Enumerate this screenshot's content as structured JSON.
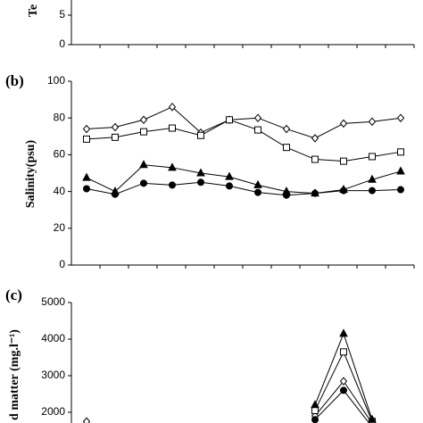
{
  "chart_data": [
    {
      "type": "line",
      "y_label": "Te",
      "ylim": [
        0,
        10
      ],
      "yticks": [
        0,
        5
      ],
      "categories": [
        null,
        null,
        null,
        null,
        null,
        null,
        null,
        null,
        null,
        null,
        null,
        null
      ],
      "series": []
    },
    {
      "type": "line",
      "panel_label": "(b)",
      "y_label": "Salinity(psu)",
      "ylim": [
        0,
        100
      ],
      "yticks": [
        0,
        20,
        40,
        60,
        80,
        100
      ],
      "categories": [
        null,
        null,
        null,
        null,
        null,
        null,
        null,
        null,
        null,
        null,
        null,
        null
      ],
      "series": [
        {
          "marker": "diamond",
          "color": "#000000",
          "values": [
            74,
            75,
            79,
            86,
            72,
            79,
            80,
            74,
            69,
            77,
            78,
            80
          ]
        },
        {
          "marker": "square",
          "color": "#000000",
          "values": [
            68.5,
            69.5,
            72.5,
            74.5,
            70.5,
            79,
            73.5,
            64,
            57.5,
            56.5,
            59,
            61.5
          ]
        },
        {
          "marker": "triangle",
          "color": "#000000",
          "values": [
            47.5,
            40,
            54.5,
            53,
            50,
            48,
            43.5,
            40,
            39,
            41,
            46.5,
            51
          ]
        },
        {
          "marker": "circle",
          "color": "#000000",
          "values": [
            41.5,
            38.5,
            44.5,
            43.5,
            45,
            43,
            39.5,
            38,
            39,
            40.5,
            40.5,
            41
          ]
        }
      ]
    },
    {
      "type": "line",
      "panel_label": "(c)",
      "y_label": "d matter (mg.l⁻¹)",
      "ylim": [
        0,
        5000
      ],
      "yticks": [
        2000,
        3000,
        4000,
        5000
      ],
      "categories": [
        null,
        null,
        null,
        null,
        null,
        null,
        null,
        null,
        null,
        null,
        null,
        null
      ],
      "series": [
        {
          "marker": "diamond",
          "color": "#000000",
          "values": [
            1750,
            null,
            null,
            null,
            null,
            null,
            null,
            null,
            1900,
            2850,
            1700,
            null
          ]
        },
        {
          "marker": "square",
          "color": "#000000",
          "values": [
            null,
            null,
            null,
            null,
            null,
            null,
            null,
            null,
            2050,
            3650,
            1750,
            null
          ]
        },
        {
          "marker": "triangle",
          "color": "#000000",
          "values": [
            null,
            null,
            null,
            null,
            null,
            null,
            null,
            null,
            2200,
            4150,
            1800,
            null
          ]
        },
        {
          "marker": "circle",
          "color": "#000000",
          "values": [
            null,
            null,
            null,
            null,
            null,
            null,
            null,
            null,
            1800,
            2600,
            1600,
            null
          ]
        }
      ]
    }
  ]
}
